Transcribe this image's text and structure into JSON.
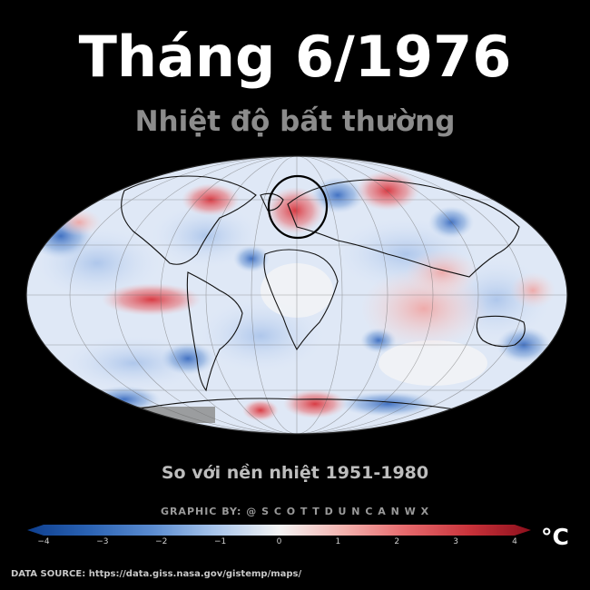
{
  "title": "Tháng 6/1976",
  "subtitle": "Nhiệt độ bất thường",
  "baseline_note": "So với nền nhiệt 1951-1980",
  "credit": "GRAPHIC BY: @ S C O T T D U N C A N W X",
  "colorbar": {
    "ticks": [
      "−4",
      "−3",
      "−2",
      "−1",
      "0",
      "1",
      "2",
      "3",
      "4"
    ],
    "unit": "°C",
    "cold_color": "#1f4fa0",
    "neutral_color": "#f4f4f4",
    "warm_color": "#b81f2a"
  },
  "source": "DATA SOURCE: https://data.giss.nasa.gov/gistemp/maps/",
  "map": {
    "projection": "Mollweide",
    "highlight": "western-europe-anomaly-circle"
  }
}
